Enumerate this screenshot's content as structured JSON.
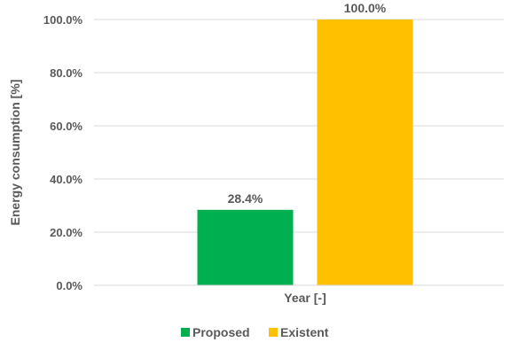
{
  "chart_data": {
    "type": "bar",
    "categories": [
      "Year [-]"
    ],
    "series": [
      {
        "name": "Proposed",
        "values": [
          28.4
        ],
        "color": "#00b050"
      },
      {
        "name": "Existent",
        "values": [
          100.0
        ],
        "color": "#ffc000"
      }
    ],
    "data_labels": [
      "28.4%",
      "100.0%"
    ],
    "yticks": [
      "0.0%",
      "20.0%",
      "40.0%",
      "60.0%",
      "80.0%",
      "100.0%"
    ],
    "ylabel": "Energy consumption [%]",
    "xlabel": "Year [-]",
    "ylim": [
      0,
      100
    ],
    "grid": true,
    "legend_position": "bottom"
  }
}
